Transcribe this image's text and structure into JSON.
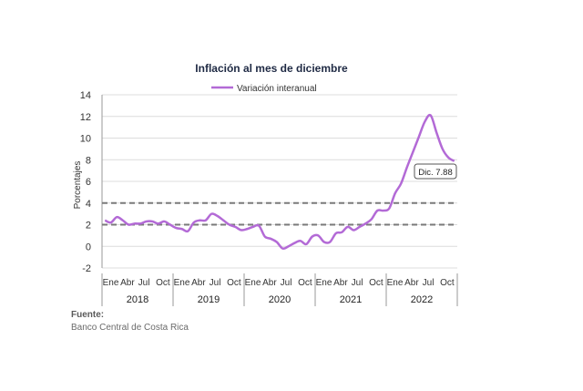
{
  "chart_data": {
    "type": "line",
    "title": "Inflación al mes de diciembre",
    "ylabel": "Porcentajes",
    "xlabel": "",
    "ylim": [
      -2,
      14
    ],
    "yticks": [
      -2,
      0,
      2,
      4,
      6,
      8,
      10,
      12,
      14
    ],
    "grid": "horizontal",
    "legend_position": "top",
    "month_tick_labels": [
      "Ene",
      "Abr",
      "Jul",
      "Oct"
    ],
    "years": [
      "2018",
      "2019",
      "2020",
      "2021",
      "2022"
    ],
    "series": [
      {
        "name": "Variación interanual",
        "color": "#b36ad6",
        "x": [
          "2018-01",
          "2018-02",
          "2018-03",
          "2018-04",
          "2018-05",
          "2018-06",
          "2018-07",
          "2018-08",
          "2018-09",
          "2018-10",
          "2018-11",
          "2018-12",
          "2019-01",
          "2019-02",
          "2019-03",
          "2019-04",
          "2019-05",
          "2019-06",
          "2019-07",
          "2019-08",
          "2019-09",
          "2019-10",
          "2019-11",
          "2019-12",
          "2020-01",
          "2020-02",
          "2020-03",
          "2020-04",
          "2020-05",
          "2020-06",
          "2020-07",
          "2020-08",
          "2020-09",
          "2020-10",
          "2020-11",
          "2020-12",
          "2021-01",
          "2021-02",
          "2021-03",
          "2021-04",
          "2021-05",
          "2021-06",
          "2021-07",
          "2021-08",
          "2021-09",
          "2021-10",
          "2021-11",
          "2021-12",
          "2022-01",
          "2022-02",
          "2022-03",
          "2022-04",
          "2022-05",
          "2022-06",
          "2022-07",
          "2022-08",
          "2022-09",
          "2022-10",
          "2022-11",
          "2022-12"
        ],
        "values": [
          2.4,
          2.2,
          2.7,
          2.4,
          2.0,
          2.1,
          2.1,
          2.3,
          2.3,
          2.1,
          2.3,
          2.0,
          1.7,
          1.6,
          1.4,
          2.2,
          2.4,
          2.4,
          3.0,
          2.8,
          2.4,
          2.0,
          1.8,
          1.5,
          1.6,
          1.8,
          1.9,
          0.9,
          0.7,
          0.4,
          -0.2,
          0.0,
          0.3,
          0.5,
          0.2,
          0.9,
          1.0,
          0.4,
          0.4,
          1.2,
          1.3,
          1.8,
          1.5,
          1.8,
          2.1,
          2.5,
          3.3,
          3.3,
          3.5,
          4.9,
          5.8,
          7.3,
          8.7,
          10.1,
          11.5,
          12.1,
          10.5,
          9.0,
          8.2,
          7.88
        ]
      }
    ],
    "reference_lines": [
      {
        "value": 4,
        "style": "dashed",
        "color": "#7a7a7a"
      },
      {
        "value": 2,
        "style": "dashed",
        "color": "#7a7a7a"
      }
    ],
    "annotations": [
      {
        "text": "Dic. 7.88",
        "x": "2022-12",
        "y": 7.88
      }
    ]
  },
  "source": {
    "label": "Fuente:",
    "text": "Banco Central de Costa Rica"
  }
}
